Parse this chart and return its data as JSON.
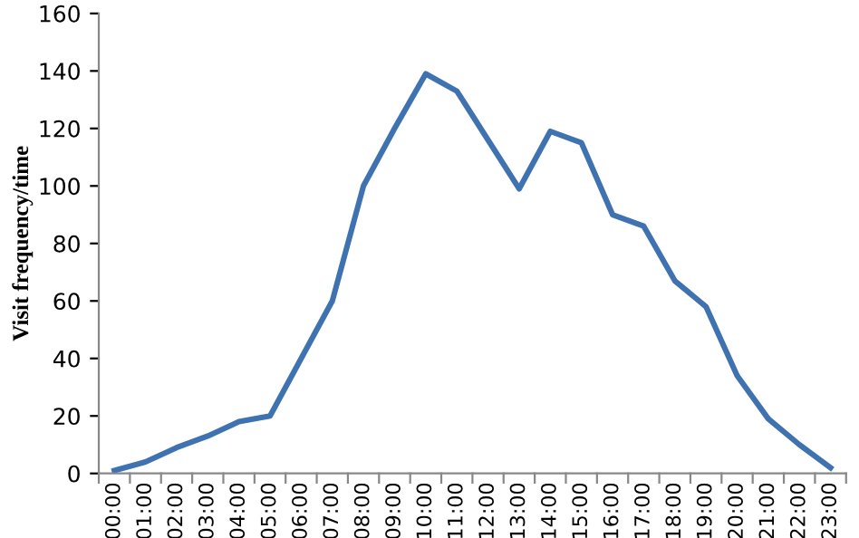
{
  "chart_data": {
    "type": "line",
    "ylabel": "Visit frequency/time",
    "categories": [
      "00:00",
      "01:00",
      "02:00",
      "03:00",
      "04:00",
      "05:00",
      "06:00",
      "07:00",
      "08:00",
      "09:00",
      "10:00",
      "11:00",
      "12:00",
      "13:00",
      "14:00",
      "15:00",
      "16:00",
      "17:00",
      "18:00",
      "19:00",
      "20:00",
      "21:00",
      "22:00",
      "23:00"
    ],
    "series": [
      {
        "color": "#3f72b0",
        "values": [
          1,
          4,
          9,
          13,
          18,
          20,
          40,
          60,
          100,
          120,
          139,
          133,
          116,
          99,
          119,
          115,
          90,
          86,
          67,
          58,
          34,
          19,
          10,
          2
        ]
      }
    ],
    "ylim": [
      0,
      160
    ],
    "yticks": [
      0,
      20,
      40,
      60,
      80,
      100,
      120,
      140,
      160
    ],
    "grid": false,
    "legend": false,
    "marker": "none",
    "line_style": "solid"
  }
}
